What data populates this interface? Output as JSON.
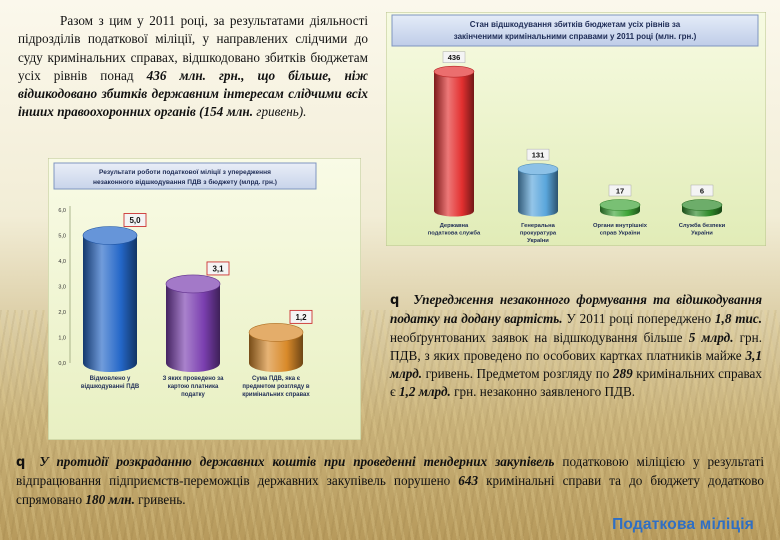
{
  "intro": {
    "p1": "Разом з цим у 2011 році, за результатами діяльності підрозділів податкової міліції, у направлених слідчими до суду кримінальних справах, відшкодовано збитків бюджетам усіх рівнів понад ",
    "p1_num": "436 млн.",
    "p1_rest": " грн.",
    "p1_em": ", що більше, ніж відшкодовано збитків державним інтересам слідчими всіх інших правоохоронних органів (154 млн.",
    "p1_end": " гривень)."
  },
  "bullet1": {
    "marker": "q",
    "em": "Упередження незаконного формування та відшкодування податку на додану вартість.",
    "t1": " У 2011 році попереджено ",
    "n1": "1,8 тис.",
    "t2": " необґрунтованих заявок на відшкодування більше ",
    "n2": "5 млрд.",
    "t3": " грн. ПДВ, з яких проведено по особових картках платників майже ",
    "n3": "3,1 млрд.",
    "t4": " гривень. Предметом розгляду по ",
    "n4": "289",
    "t5": " кримінальних справах є ",
    "n5": "1,2 млрд.",
    "t6": " грн. незаконно заявленого ПДВ."
  },
  "bullet2": {
    "marker": "q",
    "em": "У протидії розкраданню державних коштів при проведенні тендерних закупівель",
    "t1": " податковою міліцією у результаті відпрацювання підприємств-переможців державних закупівель порушено ",
    "n1": "643",
    "t2": " кримінальні справи та до бюджету додатково спрямовано ",
    "n2": "180 млн.",
    "t3": " гривень."
  },
  "brand": "Податкова міліція",
  "chart_data": [
    {
      "type": "bar",
      "title": "Результати роботи податкової міліції з упередження незаконного відшкодування ПДВ з бюджету (млрд. грн.)",
      "categories": [
        "Відмовлено у відшкодуванні ПДВ",
        "З яких проведено за картою платника податку",
        "Сума ПДВ, яка є предметом розгляду в кримінальних справах"
      ],
      "values": [
        5.0,
        3.1,
        1.2
      ],
      "value_labels": [
        "5,0",
        "3,1",
        "1,2"
      ],
      "y_ticks": [
        "0,0",
        "1,0",
        "2,0",
        "3,0",
        "4,0",
        "5,0",
        "6,0"
      ],
      "ylim": [
        0,
        6
      ],
      "colors": [
        "#2467c8",
        "#7b3fb0",
        "#d98a2a"
      ],
      "grid": false
    },
    {
      "type": "bar",
      "title": "Стан відшкодування збитків бюджетам усіх рівнів за закінченими кримінальними справами у 2011 році (млн. грн.)",
      "categories": [
        "Державна податкова служба",
        "Генеральна прокуратура України",
        "Органи внутрішніх справ України",
        "Служба безпеки України"
      ],
      "values": [
        436,
        131,
        17,
        6
      ],
      "value_labels": [
        "436",
        "131",
        "17",
        "6"
      ],
      "ylim": [
        0,
        460
      ],
      "colors": [
        "#e33030",
        "#5aa6dc",
        "#3fa538",
        "#2f8a2a"
      ],
      "grid": false
    }
  ]
}
